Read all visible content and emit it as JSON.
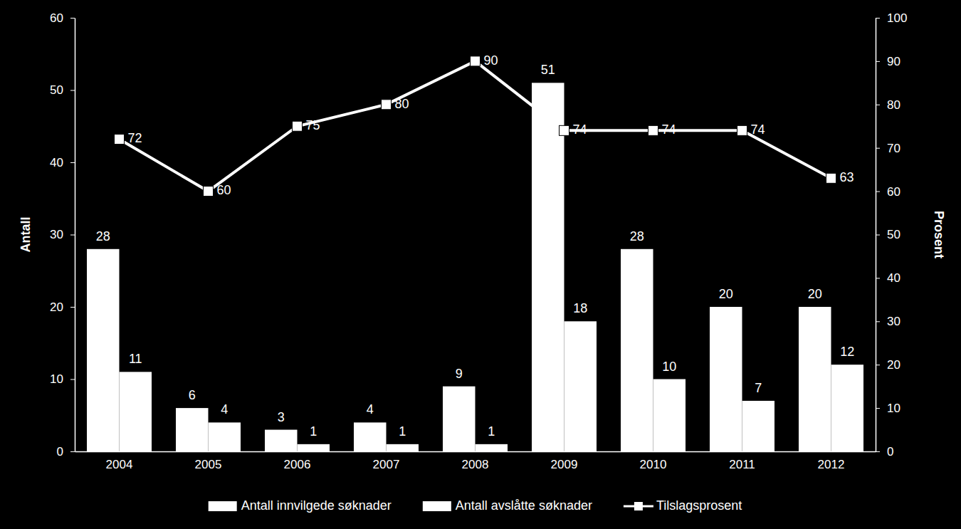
{
  "chart_data": {
    "type": "bar",
    "categories": [
      "2004",
      "2005",
      "2006",
      "2007",
      "2008",
      "2009",
      "2010",
      "2011",
      "2012"
    ],
    "series": [
      {
        "name": "Antall innvilgede søknader",
        "type": "bar",
        "color": "#ffffff",
        "values": [
          28,
          6,
          3,
          4,
          9,
          51,
          28,
          20,
          20
        ]
      },
      {
        "name": "Antall avslåtte søknader",
        "type": "bar",
        "color": "#ffffff",
        "values": [
          11,
          4,
          1,
          1,
          1,
          18,
          10,
          7,
          12
        ]
      },
      {
        "name": "Tilslagsprosent",
        "type": "line",
        "axis": "y2",
        "color": "#ffffff",
        "marker": "square",
        "values": [
          72,
          60,
          75,
          80,
          90,
          74,
          74,
          74,
          63
        ]
      }
    ],
    "y_label": "Antall",
    "y2_label": "Prosent",
    "ylim": [
      0,
      60
    ],
    "yticks": [
      0,
      10,
      20,
      30,
      40,
      50,
      60
    ],
    "y2lim": [
      0,
      100
    ],
    "y2ticks": [
      0,
      10,
      20,
      30,
      40,
      50,
      60,
      70,
      80,
      90,
      100
    ],
    "data_labels": true,
    "legend": "bottom",
    "grid": false
  }
}
